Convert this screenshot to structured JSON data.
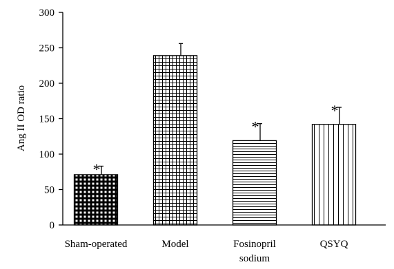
{
  "chart_data": {
    "type": "bar",
    "title": "",
    "xlabel": "",
    "ylabel": "Ang II OD ratio",
    "ylim": [
      0,
      300
    ],
    "yticks": [
      0,
      50,
      100,
      150,
      200,
      250,
      300
    ],
    "grid": false,
    "legend": "none",
    "categories": [
      [
        "Sham-operated"
      ],
      [
        "Model"
      ],
      [
        "Fosinopril",
        "sodium"
      ],
      [
        "QSYQ"
      ]
    ],
    "values": [
      71,
      239,
      119,
      142
    ],
    "error_upper": [
      12,
      17,
      24,
      24
    ],
    "significance": [
      "*",
      "",
      "*",
      "*"
    ],
    "patterns": [
      "dense-grid",
      "fine-grid",
      "horizontal-lines",
      "vertical-lines"
    ],
    "colors": {
      "axis": "#000000",
      "fill": "#ffffff",
      "hatch": "#000000"
    }
  }
}
